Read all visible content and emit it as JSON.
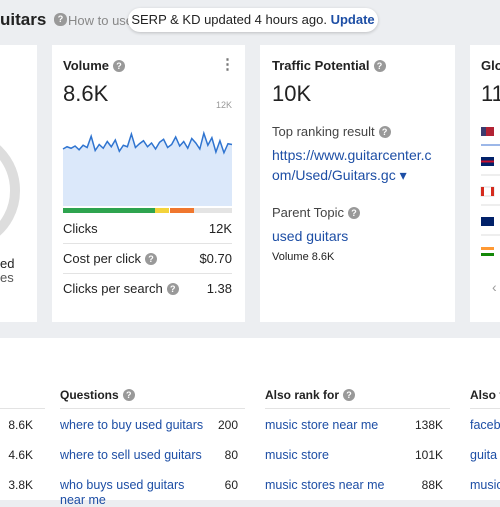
{
  "header": {
    "title": "uitars",
    "help_text": "How to use",
    "notice": "SERP & KD updated 4 hours ago.",
    "notice_action": "Update"
  },
  "left_card": {
    "lines": [
      "ed",
      "es"
    ]
  },
  "volume_card": {
    "title": "Volume",
    "value": "8.6K",
    "trend": {
      "ylim": [
        0,
        12000
      ],
      "yticks": [
        {
          "value": 12000,
          "label": "12K"
        }
      ],
      "values": [
        7600,
        7900,
        7700,
        8000,
        7500,
        8100,
        7800,
        9300,
        7400,
        8200,
        7700,
        8600,
        7900,
        8800,
        7300,
        8100,
        7900,
        9600,
        7800,
        8300,
        8700,
        7900,
        8400,
        7600,
        8500,
        8900,
        7800,
        8200,
        9200,
        8000,
        8600,
        7700,
        9000,
        8400,
        7600,
        9700,
        8100,
        9100,
        7200,
        8700,
        7100,
        8300,
        8200
      ]
    },
    "rows": [
      {
        "label": "Clicks",
        "value": "12K"
      },
      {
        "label": "Cost per click",
        "value": "$0.70"
      },
      {
        "label": "Clicks per search",
        "value": "1.38"
      }
    ]
  },
  "traffic_card": {
    "title": "Traffic Potential",
    "value": "10K",
    "top_label": "Top ranking result",
    "url_lines": [
      "https://www.guitarcenter.c",
      "om/Used/Guitars.gc"
    ],
    "parent_label": "Parent Topic",
    "parent_topic": "used guitars",
    "parent_volume": "Volume 8.6K"
  },
  "global_card": {
    "title": "Glo",
    "value": "11"
  },
  "table": {
    "col1": {
      "values": [
        "8.6K",
        "4.6K",
        "3.8K"
      ]
    },
    "questions": {
      "title": "Questions",
      "rows": [
        [
          "where to buy used guitars",
          "200"
        ],
        [
          "where to sell used guitars",
          "80"
        ],
        [
          "who buys used guitars",
          "60"
        ]
      ],
      "wrap": "near me"
    },
    "also_rank": {
      "title": "Also rank for",
      "rows": [
        [
          "music store near me",
          "138K"
        ],
        [
          "music store",
          "101K"
        ],
        [
          "music stores near me",
          "88K"
        ]
      ]
    },
    "also_talk": {
      "title": "Also t",
      "rows": [
        "faceb",
        "guita",
        "music"
      ]
    }
  }
}
